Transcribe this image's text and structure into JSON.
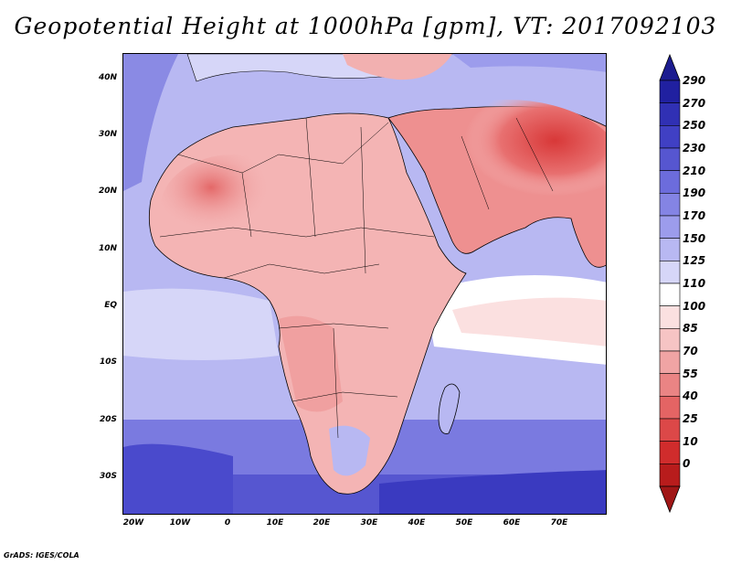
{
  "title": "Geopotential Height at 1000hPa [gpm], VT: 2017092103",
  "credit": "GrADS: IGES/COLA",
  "map": {
    "lat_labels": [
      "40N",
      "30N",
      "20N",
      "10N",
      "EQ",
      "10S",
      "20S",
      "30S"
    ],
    "lon_labels": [
      "20W",
      "10W",
      "0",
      "10E",
      "20E",
      "30E",
      "40E",
      "50E",
      "60E",
      "70E"
    ]
  },
  "colorbar": {
    "labels": [
      "290",
      "270",
      "250",
      "230",
      "210",
      "190",
      "170",
      "150",
      "125",
      "110",
      "100",
      "85",
      "70",
      "55",
      "40",
      "25",
      "10",
      "0"
    ],
    "colors": [
      "#2020a0",
      "#3030b4",
      "#4040c4",
      "#5656d0",
      "#6c6cdc",
      "#8484e4",
      "#9c9cec",
      "#b8b8f2",
      "#d6d6f8",
      "#ffffff",
      "#fbe0e0",
      "#f6c4c4",
      "#f0a4a4",
      "#ea8484",
      "#e46464",
      "#dc4848",
      "#d02c2c",
      "#b81c1c"
    ]
  }
}
